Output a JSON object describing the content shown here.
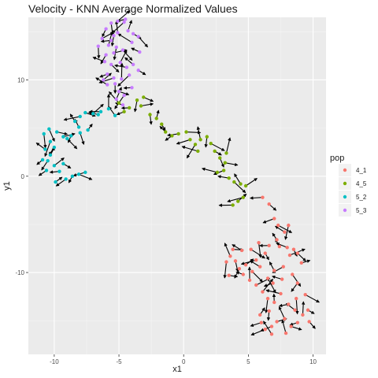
{
  "chart_data": {
    "type": "scatter",
    "title": "Velocity - KNN Average Normalized Values",
    "xlabel": "x1",
    "ylabel": "y1",
    "xlim": [
      -12,
      11
    ],
    "ylim": [
      -18.5,
      16.5
    ],
    "x_ticks": [
      -10,
      -5,
      0,
      5,
      10
    ],
    "y_ticks": [
      -10,
      0,
      10
    ],
    "x_tick_labels": [
      "-10",
      "-5",
      "0",
      "5",
      "10"
    ],
    "y_tick_labels": [
      "-10",
      "0",
      "10"
    ],
    "grid": true,
    "legend_position": "right",
    "legend_title": "pop",
    "arrows": "each point has a black velocity arrow",
    "series": [
      {
        "name": "4_1",
        "color": "#F8766D",
        "points": [
          [
            6.1,
            -2.2
          ],
          [
            6.6,
            -2.9
          ],
          [
            7.0,
            -4.4
          ],
          [
            7.3,
            -5.1
          ],
          [
            7.8,
            -5.8
          ],
          [
            8.1,
            -5.1
          ],
          [
            7.2,
            -6.6
          ],
          [
            6.6,
            -7.2
          ],
          [
            7.4,
            -7.3
          ],
          [
            8.0,
            -7.4
          ],
          [
            8.5,
            -7.6
          ],
          [
            8.2,
            -8.2
          ],
          [
            8.8,
            -8.0
          ],
          [
            9.1,
            -9.0
          ],
          [
            7.7,
            -9.4
          ],
          [
            7.0,
            -9.8
          ],
          [
            6.5,
            -10.6
          ],
          [
            6.9,
            -11.1
          ],
          [
            7.6,
            -10.7
          ],
          [
            8.4,
            -10.2
          ],
          [
            8.8,
            -11.1
          ],
          [
            9.4,
            -12.3
          ],
          [
            8.7,
            -12.7
          ],
          [
            8.1,
            -13.3
          ],
          [
            8.6,
            -13.9
          ],
          [
            9.2,
            -14.4
          ],
          [
            9.7,
            -15.1
          ],
          [
            8.8,
            -15.2
          ],
          [
            8.3,
            -15.6
          ],
          [
            7.8,
            -14.8
          ],
          [
            7.2,
            -15.1
          ],
          [
            6.8,
            -15.6
          ],
          [
            6.3,
            -15.9
          ],
          [
            6.0,
            -15.2
          ],
          [
            6.6,
            -14.0
          ],
          [
            7.0,
            -13.1
          ],
          [
            6.5,
            -12.7
          ],
          [
            6.1,
            -12.0
          ],
          [
            5.6,
            -11.3
          ],
          [
            5.1,
            -10.8
          ],
          [
            4.6,
            -10.2
          ],
          [
            4.3,
            -9.6
          ],
          [
            4.0,
            -8.8
          ],
          [
            3.6,
            -8.3
          ],
          [
            3.3,
            -8.9
          ],
          [
            3.8,
            -7.6
          ],
          [
            4.5,
            -7.7
          ],
          [
            5.2,
            -7.6
          ],
          [
            5.6,
            -8.7
          ],
          [
            5.9,
            -9.4
          ],
          [
            5.3,
            -9.9
          ],
          [
            4.8,
            -9.2
          ],
          [
            3.5,
            -10.3
          ],
          [
            7.9,
            -16.3
          ],
          [
            6.8,
            -16.4
          ],
          [
            5.8,
            -6.9
          ],
          [
            6.3,
            -8.0
          ],
          [
            9.6,
            -13.9
          ],
          [
            7.5,
            -12.2
          ],
          [
            5.9,
            -14.4
          ]
        ]
      },
      {
        "name": "4_5",
        "color": "#7CAE00",
        "points": [
          [
            -4.2,
            7.1
          ],
          [
            -3.6,
            7.9
          ],
          [
            -3.1,
            8.2
          ],
          [
            -2.6,
            6.4
          ],
          [
            -2.1,
            6.0
          ],
          [
            -1.7,
            5.4
          ],
          [
            -1.4,
            4.6
          ],
          [
            -0.9,
            4.2
          ],
          [
            -0.4,
            4.4
          ],
          [
            0.2,
            4.6
          ],
          [
            0.5,
            3.8
          ],
          [
            0.9,
            3.3
          ],
          [
            1.3,
            3.8
          ],
          [
            1.8,
            4.1
          ],
          [
            2.1,
            3.4
          ],
          [
            2.4,
            2.6
          ],
          [
            2.8,
            1.9
          ],
          [
            3.2,
            1.4
          ],
          [
            3.1,
            0.6
          ],
          [
            2.6,
            0.4
          ],
          [
            3.5,
            -0.2
          ],
          [
            3.9,
            -0.6
          ],
          [
            4.4,
            -0.8
          ],
          [
            4.8,
            -1.0
          ],
          [
            4.6,
            -2.2
          ],
          [
            4.2,
            -2.6
          ],
          [
            3.8,
            -3.0
          ],
          [
            3.3,
            2.4
          ],
          [
            1.1,
            2.6
          ],
          [
            -5.0,
            7.6
          ],
          [
            -4.6,
            6.7
          ],
          [
            -3.3,
            7.3
          ]
        ]
      },
      {
        "name": "5_2",
        "color": "#00BFC4",
        "points": [
          [
            -5.3,
            6.3
          ],
          [
            -5.8,
            7.0
          ],
          [
            -6.4,
            6.7
          ],
          [
            -7.0,
            6.5
          ],
          [
            -7.6,
            6.6
          ],
          [
            -8.0,
            6.2
          ],
          [
            -8.4,
            5.7
          ],
          [
            -8.1,
            5.1
          ],
          [
            -8.0,
            4.5
          ],
          [
            -8.7,
            4.2
          ],
          [
            -9.3,
            4.1
          ],
          [
            -9.8,
            4.6
          ],
          [
            -10.4,
            4.9
          ],
          [
            -10.8,
            4.4
          ],
          [
            -10.3,
            3.6
          ],
          [
            -10.7,
            2.8
          ],
          [
            -10.3,
            2.2
          ],
          [
            -10.5,
            1.6
          ],
          [
            -10.0,
            1.1
          ],
          [
            -9.3,
            1.3
          ],
          [
            -9.6,
            0.5
          ],
          [
            -9.1,
            -0.3
          ],
          [
            -8.6,
            0.0
          ],
          [
            -8.1,
            0.2
          ],
          [
            -7.6,
            0.4
          ],
          [
            -9.9,
            -0.6
          ],
          [
            -10.6,
            0.6
          ],
          [
            -10.9,
            1.7
          ],
          [
            -9.0,
            3.9
          ],
          [
            -7.4,
            4.8
          ],
          [
            -6.6,
            6.4
          ],
          [
            -10.0,
            3.0
          ]
        ]
      },
      {
        "name": "5_3",
        "color": "#C77CFF",
        "points": [
          [
            -5.1,
            14.9
          ],
          [
            -5.6,
            15.9
          ],
          [
            -5.1,
            16.1
          ],
          [
            -4.6,
            16.0
          ],
          [
            -4.3,
            15.1
          ],
          [
            -3.9,
            14.8
          ],
          [
            -3.5,
            14.5
          ],
          [
            -4.0,
            13.9
          ],
          [
            -5.4,
            14.6
          ],
          [
            -6.0,
            15.3
          ],
          [
            -6.3,
            14.3
          ],
          [
            -5.8,
            13.6
          ],
          [
            -5.2,
            13.4
          ],
          [
            -4.7,
            13.1
          ],
          [
            -5.4,
            12.8
          ],
          [
            -6.0,
            12.6
          ],
          [
            -6.1,
            11.9
          ],
          [
            -5.6,
            11.6
          ],
          [
            -4.9,
            11.8
          ],
          [
            -4.4,
            11.3
          ],
          [
            -3.9,
            11.6
          ],
          [
            -3.5,
            11.0
          ],
          [
            -4.2,
            10.5
          ],
          [
            -4.8,
            10.1
          ],
          [
            -5.4,
            10.2
          ],
          [
            -5.9,
            10.6
          ],
          [
            -6.2,
            10.0
          ],
          [
            -5.3,
            9.6
          ],
          [
            -5.0,
            8.8
          ],
          [
            -4.6,
            8.4
          ],
          [
            -5.2,
            8.0
          ],
          [
            -4.7,
            7.4
          ],
          [
            -4.5,
            16.3
          ],
          [
            -5.6,
            14.1
          ],
          [
            -6.6,
            13.5
          ],
          [
            -3.4,
            12.9
          ],
          [
            -5.9,
            9.5
          ],
          [
            -4.0,
            9.2
          ]
        ]
      }
    ]
  }
}
